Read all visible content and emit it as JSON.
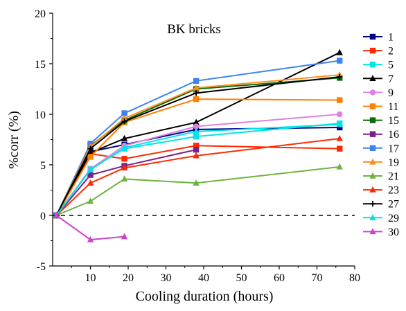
{
  "chart_data": {
    "type": "line",
    "title": "BK bricks",
    "xlabel": "Cooling duration (hours)",
    "ylabel": "%corr (%)",
    "xlim": [
      0,
      80
    ],
    "ylim": [
      -5,
      20
    ],
    "xticks": [
      10,
      20,
      30,
      40,
      50,
      60,
      70,
      80
    ],
    "yticks": [
      -5,
      0,
      5,
      10,
      15,
      20
    ],
    "grid": false,
    "legend": "right",
    "reference_line": {
      "y": 0,
      "style": "dashed"
    },
    "series": [
      {
        "name": "1",
        "color": "#00008B",
        "marker": "square",
        "x": [
          1,
          10,
          19,
          38,
          76
        ],
        "y": [
          0,
          6.3,
          7.0,
          8.5,
          8.7
        ]
      },
      {
        "name": "2",
        "color": "#FF2A00",
        "marker": "square",
        "x": [
          1,
          10,
          19,
          38,
          76
        ],
        "y": [
          0,
          6.1,
          5.6,
          6.9,
          6.6
        ]
      },
      {
        "name": "5",
        "color": "#00E5E5",
        "marker": "square",
        "x": [
          1,
          10,
          19,
          38,
          76
        ],
        "y": [
          0,
          4.6,
          6.6,
          7.8,
          9.1
        ]
      },
      {
        "name": "7",
        "color": "#000000",
        "marker": "triangle",
        "x": [
          1,
          10,
          19,
          38,
          76
        ],
        "y": [
          0,
          6.2,
          7.6,
          9.2,
          16.1
        ]
      },
      {
        "name": "9",
        "color": "#E080E0",
        "marker": "circle",
        "x": [
          1,
          10,
          19,
          38,
          76
        ],
        "y": [
          0,
          4.6,
          6.9,
          8.8,
          10.0
        ]
      },
      {
        "name": "11",
        "color": "#FF8000",
        "marker": "square",
        "x": [
          1,
          10,
          19,
          38,
          76
        ],
        "y": [
          0,
          5.8,
          9.2,
          11.5,
          11.4
        ]
      },
      {
        "name": "15",
        "color": "#0B6B0B",
        "marker": "square",
        "x": [
          1,
          10,
          19,
          38,
          76
        ],
        "y": [
          0,
          6.9,
          9.4,
          12.5,
          13.6
        ]
      },
      {
        "name": "16",
        "color": "#7B1F8C",
        "marker": "square",
        "x": [
          1,
          10,
          19,
          38
        ],
        "y": [
          0,
          4.0,
          4.9,
          6.5
        ]
      },
      {
        "name": "17",
        "color": "#3E82F0",
        "marker": "square",
        "x": [
          1,
          10,
          19,
          38,
          76
        ],
        "y": [
          0,
          7.1,
          10.1,
          13.3,
          15.3
        ]
      },
      {
        "name": "19",
        "color": "#FF8C1A",
        "marker": "triangle",
        "x": [
          1,
          10,
          19,
          38,
          76
        ],
        "y": [
          0,
          6.8,
          9.6,
          12.6,
          13.9
        ]
      },
      {
        "name": "21",
        "color": "#6DB33F",
        "marker": "triangle",
        "x": [
          1,
          10,
          19,
          38,
          76
        ],
        "y": [
          0,
          1.4,
          3.6,
          3.2,
          4.8
        ]
      },
      {
        "name": "23",
        "color": "#FF2A00",
        "marker": "triangle",
        "x": [
          1,
          10,
          19,
          38,
          76
        ],
        "y": [
          0,
          3.2,
          4.7,
          5.9,
          7.6
        ]
      },
      {
        "name": "27",
        "color": "#000000",
        "marker": "plus",
        "x": [
          1,
          10,
          19,
          38,
          76
        ],
        "y": [
          0,
          6.6,
          9.3,
          12.1,
          13.7
        ]
      },
      {
        "name": "29",
        "color": "#00E5E5",
        "marker": "triangle",
        "x": [
          1,
          10,
          19,
          38,
          76
        ],
        "y": [
          0,
          4.5,
          6.7,
          8.3,
          9.0
        ]
      },
      {
        "name": "30",
        "color": "#CC44CC",
        "marker": "triangle",
        "x": [
          1,
          10,
          19
        ],
        "y": [
          0,
          -2.4,
          -2.1
        ]
      }
    ]
  }
}
